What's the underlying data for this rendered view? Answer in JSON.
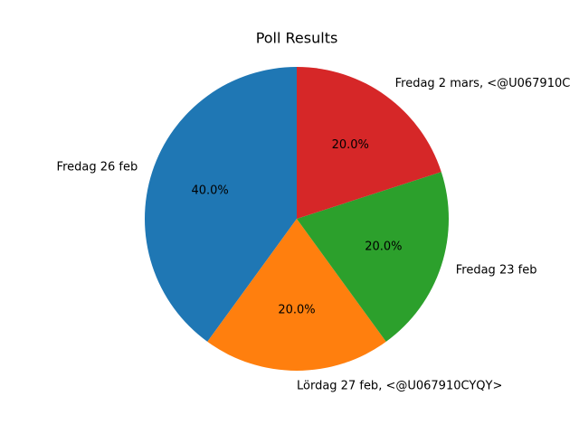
{
  "chart_data": {
    "type": "pie",
    "title": "Poll Results",
    "categories": [
      "Fredag 26 feb",
      "Lördag 27 feb, <@U067910CYQY>",
      "Fredag 23 feb",
      "Fredag 2 mars, <@U067910C"
    ],
    "values": [
      40,
      20,
      20,
      20
    ],
    "value_labels": [
      "40.0%",
      "20.0%",
      "20.0%",
      "20.0%"
    ],
    "colors": [
      "#1f77b4",
      "#ff7f0e",
      "#2ca02c",
      "#d62728"
    ]
  }
}
